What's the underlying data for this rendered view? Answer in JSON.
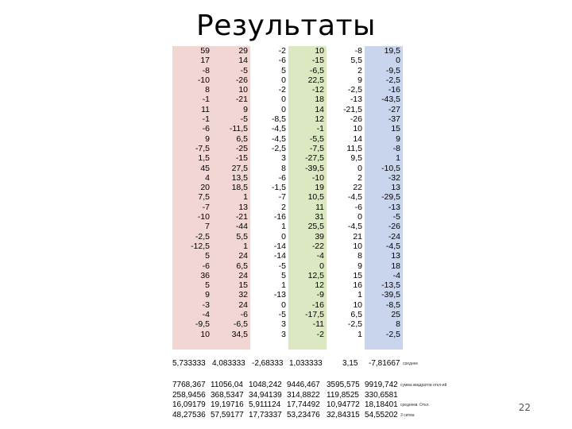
{
  "title": "Результаты",
  "columns": [
    [
      "59",
      "17",
      "-8",
      "-10",
      "8",
      "-1",
      "11",
      "-1",
      "-6",
      "9",
      "-7,5",
      "1,5",
      "45",
      "4",
      "20",
      "7,5",
      "-7",
      "-10",
      "7",
      "-2,5",
      "-12,5",
      "5",
      "-6",
      "36",
      "5",
      "9",
      "-3",
      "-4",
      "-9,5",
      "10"
    ],
    [
      "29",
      "14",
      "-5",
      "-26",
      "10",
      "-21",
      "9",
      "-5",
      "-11,5",
      "6,5",
      "-25",
      "-15",
      "27,5",
      "13,5",
      "18,5",
      "1",
      "13",
      "-21",
      "-44",
      "5,5",
      "1",
      "24",
      "6,5",
      "24",
      "15",
      "32",
      "24",
      "-6",
      "-6,5",
      "34,5"
    ],
    [
      "-2",
      "-6",
      "5",
      "0",
      "-2",
      "0",
      "0",
      "-8,5",
      "-4,5",
      "-4,5",
      "-2,5",
      "3",
      "8",
      "-6",
      "-1,5",
      "-7",
      "2",
      "-16",
      "1",
      "0",
      "-14",
      "-14",
      "-5",
      "5",
      "1",
      "-13",
      "0",
      "-5",
      "3",
      "3"
    ],
    [
      "10",
      "-15",
      "-6,5",
      "22,5",
      "-12",
      "18",
      "14",
      "12",
      "-1",
      "-5,5",
      "-7,5",
      "-27,5",
      "-39,5",
      "-10",
      "19",
      "10,5",
      "11",
      "31",
      "25,5",
      "39",
      "-22",
      "-4",
      "0",
      "12,5",
      "12",
      "-9",
      "-16",
      "-17,5",
      "-11",
      "-2"
    ],
    [
      "-8",
      "5,5",
      "2",
      "9",
      "-2,5",
      "-13",
      "-21,5",
      "-26",
      "10",
      "14",
      "11,5",
      "9,5",
      "0",
      "2",
      "22",
      "-4,5",
      "-6",
      "0",
      "-4,5",
      "21",
      "10",
      "8",
      "9",
      "15",
      "16",
      "1",
      "10",
      "6,5",
      "-2,5",
      "1"
    ],
    [
      "19,5",
      "0",
      "-9,5",
      "-2,5",
      "-16",
      "-43,5",
      "-27",
      "-37",
      "15",
      "9",
      "-8",
      "1",
      "-10,5",
      "-32",
      "13",
      "-29,5",
      "-13",
      "-5",
      "-26",
      "-24",
      "-4,5",
      "13",
      "18",
      "-4",
      "-13,5",
      "-39,5",
      "-8,5",
      "25",
      "8",
      "-2,5"
    ]
  ],
  "means": {
    "values": [
      "5,733333",
      "4,083333",
      "-2,68333",
      "1,033333",
      "3,15",
      "-7,81667"
    ],
    "label": "среднее"
  },
  "stats": [
    {
      "values": [
        "7768,367",
        "11056,04",
        "1048,242",
        "9446,467",
        "3595,575",
        "9919,742"
      ],
      "label": "сумма квадратов откл-ий"
    },
    {
      "values": [
        "258,9456",
        "368,5347",
        "34,94139",
        "314,8822",
        "119,8525",
        "330,6581"
      ],
      "label": ""
    },
    {
      "values": [
        "16,09179",
        "19,19716",
        "5,911124",
        "17,74492",
        "10,94772",
        "18,18401"
      ],
      "label": "среднекв. Откл."
    },
    {
      "values": [
        "48,27536",
        "57,59177",
        "17,73337",
        "53,23476",
        "32,84315",
        "54,55202"
      ],
      "label": "3 сигма"
    }
  ],
  "page_number": "22",
  "colors": {
    "col_red": "#f1d6d4",
    "col_green": "#dce8c2",
    "col_blue": "#c9d5ec"
  }
}
